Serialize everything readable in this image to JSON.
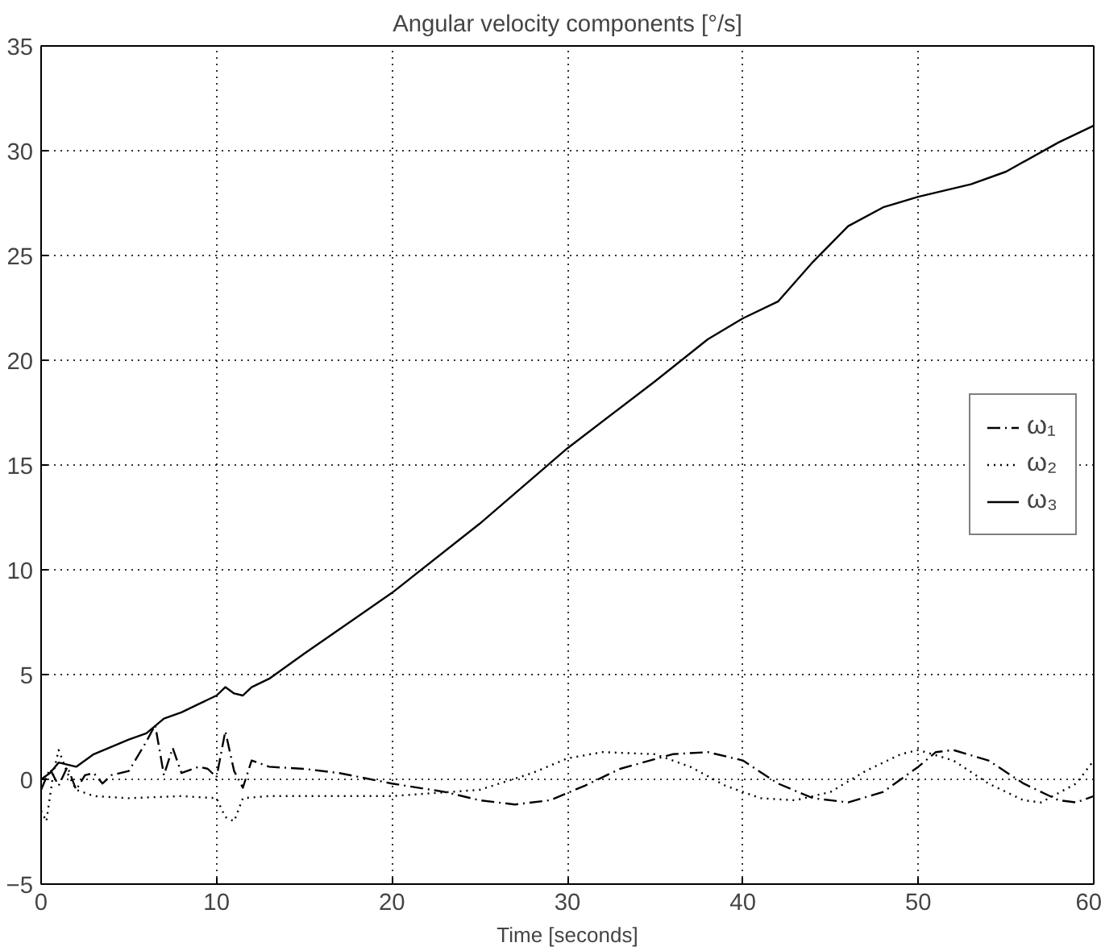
{
  "chart_data": {
    "type": "line",
    "title": "Angular velocity components [°/s]",
    "xlabel": "Time [seconds]",
    "xlim": [
      0,
      60
    ],
    "xticks": [
      0,
      10,
      20,
      30,
      40,
      50,
      60
    ],
    "ylim": [
      -5,
      35
    ],
    "yticks": [
      -5,
      0,
      5,
      10,
      15,
      20,
      25,
      30,
      35
    ],
    "grid": true,
    "legend": "right",
    "series": [
      {
        "name": "ω₁",
        "color": "#000000",
        "line_style": "dashdot",
        "x": [
          0,
          0.5,
          1,
          1.5,
          2,
          2.5,
          3,
          3.5,
          4,
          5,
          6,
          6.5,
          7,
          7.5,
          8,
          9,
          9.5,
          10,
          10.5,
          11,
          11.5,
          12,
          13,
          15,
          17,
          20,
          23,
          25,
          27,
          29,
          31,
          33,
          36,
          38,
          40,
          42,
          44,
          46,
          48,
          50,
          51,
          52,
          54,
          56,
          58,
          59,
          60
        ],
        "values": [
          -0.5,
          0.5,
          -0.3,
          0.6,
          -0.5,
          0.2,
          0.3,
          -0.2,
          0.2,
          0.4,
          1.8,
          2.6,
          0.2,
          1.5,
          0.3,
          0.6,
          0.5,
          0.1,
          2.3,
          0.4,
          -0.4,
          0.9,
          0.6,
          0.5,
          0.3,
          -0.2,
          -0.6,
          -1.0,
          -1.2,
          -1.0,
          -0.3,
          0.5,
          1.2,
          1.3,
          0.9,
          -0.2,
          -0.9,
          -1.1,
          -0.6,
          0.6,
          1.3,
          1.4,
          0.9,
          -0.2,
          -1.0,
          -1.1,
          -0.8
        ]
      },
      {
        "name": "ω₂",
        "color": "#000000",
        "line_style": "dotted",
        "x": [
          0,
          0.3,
          0.7,
          1,
          1.5,
          2,
          3,
          5,
          8,
          10,
          10.5,
          11,
          11.5,
          13,
          20,
          25,
          28,
          30,
          32,
          35,
          37,
          39,
          41,
          43,
          45,
          47,
          49,
          50,
          52,
          54,
          56,
          57,
          59,
          60
        ],
        "values": [
          -1.5,
          -2.0,
          0.3,
          1.4,
          0.3,
          -0.5,
          -0.8,
          -0.9,
          -0.8,
          -0.9,
          -1.8,
          -2.0,
          -0.9,
          -0.8,
          -0.8,
          -0.5,
          0.3,
          1.0,
          1.3,
          1.2,
          0.6,
          -0.3,
          -0.9,
          -1.0,
          -0.6,
          0.4,
          1.2,
          1.4,
          0.9,
          -0.2,
          -1.0,
          -1.1,
          -0.2,
          0.9
        ]
      },
      {
        "name": "ω₃",
        "color": "#000000",
        "line_style": "solid",
        "x": [
          0,
          0.5,
          1,
          2,
          3,
          5,
          6,
          7,
          8,
          9,
          10,
          10.5,
          11,
          11.5,
          12,
          13,
          15,
          20,
          25,
          30,
          35,
          38,
          40,
          42,
          44,
          46,
          48,
          50,
          53,
          55,
          58,
          60
        ],
        "values": [
          0,
          0.3,
          0.8,
          0.6,
          1.2,
          1.9,
          2.2,
          2.9,
          3.2,
          3.6,
          4.0,
          4.4,
          4.1,
          4.0,
          4.4,
          4.8,
          6.0,
          8.9,
          12.2,
          15.8,
          19.0,
          21.0,
          22.0,
          22.8,
          24.7,
          26.4,
          27.3,
          27.8,
          28.4,
          29.0,
          30.4,
          31.2
        ]
      }
    ]
  }
}
